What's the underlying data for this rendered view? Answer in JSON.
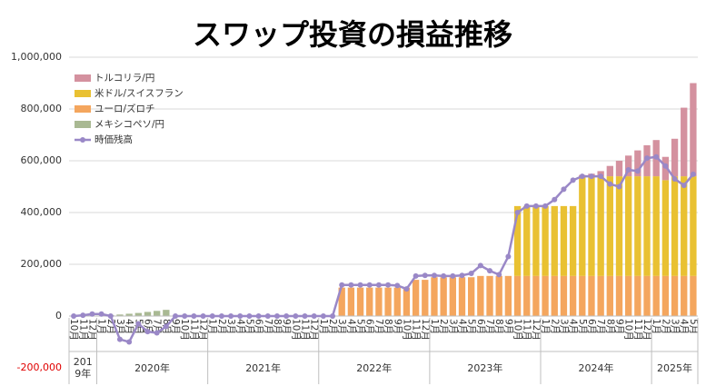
{
  "chart_data": {
    "type": "stacked-bar-line",
    "title": "スワップ投資の損益推移",
    "categories": [
      "10月",
      "11月",
      "12月",
      "1月",
      "2月",
      "3月",
      "4月",
      "5月",
      "6月",
      "7月",
      "8月",
      "9月",
      "10月",
      "11月",
      "12月",
      "1月",
      "2月",
      "3月",
      "4月",
      "5月",
      "6月",
      "7月",
      "8月",
      "9月",
      "10月",
      "11月",
      "12月",
      "1月",
      "2月",
      "3月",
      "4月",
      "5月",
      "6月",
      "7月",
      "8月",
      "9月",
      "10月",
      "11月",
      "12月",
      "1月",
      "2月",
      "3月",
      "4月",
      "5月",
      "6月",
      "7月",
      "8月",
      "9月",
      "10月",
      "11月",
      "12月",
      "1月",
      "2月",
      "3月",
      "4月",
      "5月",
      "6月",
      "7月",
      "8月",
      "9月",
      "10月",
      "11月",
      "12月",
      "1月",
      "2月",
      "3月",
      "4月",
      "5月"
    ],
    "year_labels": [
      "2019年",
      "2020年",
      "2021年",
      "2022年",
      "2023年",
      "2024年",
      "2025年"
    ],
    "series": [
      {
        "name": "トルコリラ/円",
        "color": "#d4919f",
        "kind": "bar",
        "values": [
          0,
          0,
          0,
          0,
          0,
          0,
          0,
          0,
          0,
          0,
          0,
          0,
          0,
          0,
          0,
          0,
          0,
          0,
          0,
          0,
          0,
          0,
          0,
          0,
          0,
          0,
          0,
          0,
          0,
          0,
          0,
          0,
          0,
          0,
          0,
          0,
          0,
          0,
          0,
          0,
          0,
          0,
          0,
          0,
          0,
          0,
          0,
          0,
          0,
          0,
          0,
          0,
          0,
          0,
          0,
          5000,
          10000,
          20000,
          40000,
          60000,
          80000,
          100000,
          120000,
          140000,
          90000,
          145000,
          265000,
          360000
        ]
      },
      {
        "name": "米ドル/スイスフラン",
        "color": "#e9c132",
        "kind": "bar",
        "values": [
          0,
          0,
          0,
          0,
          0,
          0,
          0,
          0,
          0,
          0,
          0,
          0,
          0,
          0,
          0,
          0,
          0,
          0,
          0,
          0,
          0,
          0,
          0,
          0,
          0,
          0,
          0,
          0,
          0,
          0,
          0,
          0,
          0,
          0,
          0,
          0,
          0,
          0,
          0,
          0,
          0,
          0,
          0,
          0,
          0,
          0,
          0,
          0,
          270000,
          270000,
          270000,
          270000,
          270000,
          270000,
          270000,
          385000,
          385000,
          385000,
          385000,
          385000,
          385000,
          385000,
          385000,
          385000,
          370000,
          385000,
          385000,
          385000
        ]
      },
      {
        "name": "ユーロ/ズロチ",
        "color": "#f4a65e",
        "kind": "bar",
        "values": [
          0,
          0,
          0,
          0,
          0,
          0,
          0,
          0,
          0,
          0,
          0,
          0,
          0,
          0,
          0,
          0,
          0,
          0,
          0,
          0,
          0,
          0,
          0,
          0,
          0,
          0,
          0,
          0,
          0,
          110000,
          110000,
          110000,
          110000,
          110000,
          110000,
          110000,
          110000,
          140000,
          140000,
          150000,
          150000,
          150000,
          150000,
          150000,
          155000,
          155000,
          155000,
          155000,
          155000,
          155000,
          155000,
          155000,
          155000,
          155000,
          155000,
          155000,
          155000,
          155000,
          155000,
          155000,
          155000,
          155000,
          155000,
          155000,
          155000,
          155000,
          155000,
          155000
        ]
      },
      {
        "name": "メキシコペソ/円",
        "color": "#a9b993",
        "kind": "bar",
        "values": [
          0,
          0,
          0,
          2000,
          4000,
          6000,
          9000,
          12000,
          16000,
          20000,
          24000,
          0,
          0,
          0,
          0,
          0,
          0,
          0,
          0,
          0,
          0,
          0,
          0,
          0,
          0,
          0,
          0,
          0,
          0,
          0,
          0,
          0,
          0,
          0,
          0,
          0,
          0,
          0,
          0,
          0,
          0,
          0,
          0,
          0,
          0,
          0,
          0,
          0,
          0,
          0,
          0,
          0,
          0,
          0,
          0,
          0,
          0,
          0,
          0,
          0,
          0,
          0,
          0,
          0,
          0,
          0,
          0,
          0
        ]
      },
      {
        "name": "時価残高",
        "color": "#9a88c7",
        "kind": "line",
        "values": [
          0,
          3000,
          8000,
          8000,
          0,
          -90000,
          -100000,
          -30000,
          -60000,
          -65000,
          -40000,
          0,
          0,
          0,
          0,
          0,
          0,
          0,
          0,
          0,
          0,
          0,
          0,
          0,
          0,
          0,
          0,
          0,
          0,
          120000,
          120000,
          120000,
          120000,
          120000,
          120000,
          118000,
          105000,
          155000,
          157000,
          157000,
          155000,
          155000,
          157000,
          165000,
          195000,
          175000,
          160000,
          230000,
          400000,
          425000,
          425000,
          425000,
          450000,
          490000,
          525000,
          540000,
          540000,
          540000,
          510000,
          500000,
          565000,
          560000,
          610000,
          615000,
          580000,
          530000,
          505000,
          548000
        ]
      }
    ],
    "ylim": [
      -200000,
      1000000
    ],
    "yticks": [
      {
        "value": -200000,
        "label": "-200,000"
      },
      0,
      {
        "value": 200000,
        "label": "200,000"
      },
      {
        "value": 400000,
        "label": "400,000"
      },
      {
        "value": 600000,
        "label": "600,000"
      },
      {
        "value": 800000,
        "label": "800,000"
      },
      {
        "value": 1000000,
        "label": "1,000,000"
      }
    ],
    "negative_tick_color": "#e00000",
    "grid": true,
    "legend": "top-left"
  }
}
